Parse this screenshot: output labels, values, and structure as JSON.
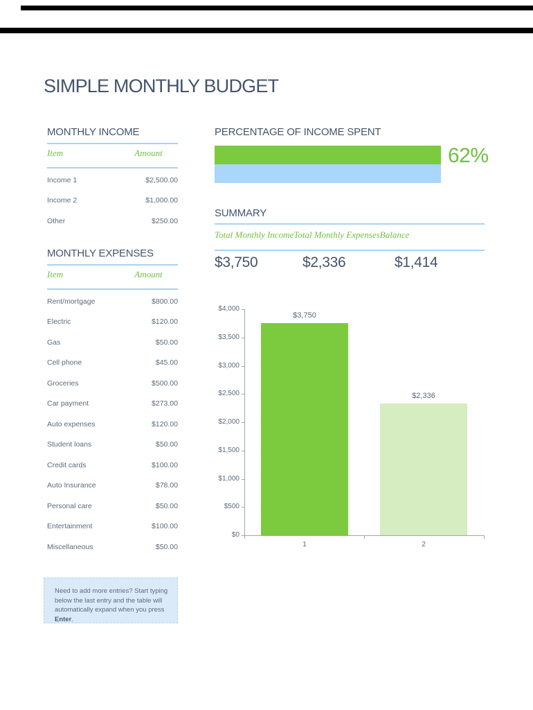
{
  "title": "SIMPLE MONTHLY BUDGET",
  "colors": {
    "heading": "#44546A",
    "body_text": "#5B6B7B",
    "accent_green": "#70BF41",
    "progress_green": "#7CCB3E",
    "progress_blue": "#A9D6FA",
    "rule_blue": "#A9D3F0",
    "chart_bar_1": "#7CCB3E",
    "chart_bar_2": "#D5EDC0",
    "note_background": "#DBEAF8"
  },
  "income": {
    "heading": "MONTHLY INCOME",
    "col_item": "Item",
    "col_amount": "Amount",
    "rows": [
      {
        "item": "Income 1",
        "amount": "$2,500.00"
      },
      {
        "item": "Income 2",
        "amount": "$1,000.00"
      },
      {
        "item": "Other",
        "amount": "$250.00"
      }
    ]
  },
  "expenses": {
    "heading": "MONTHLY EXPENSES",
    "col_item": "Item",
    "col_amount": "Amount",
    "rows": [
      {
        "item": "Rent/mortgage",
        "amount": "$800.00"
      },
      {
        "item": "Electric",
        "amount": "$120.00"
      },
      {
        "item": "Gas",
        "amount": "$50.00"
      },
      {
        "item": "Cell phone",
        "amount": "$45.00"
      },
      {
        "item": "Groceries",
        "amount": "$500.00"
      },
      {
        "item": "Car payment",
        "amount": "$273.00"
      },
      {
        "item": "Auto expenses",
        "amount": "$120.00"
      },
      {
        "item": "Student loans",
        "amount": "$50.00"
      },
      {
        "item": "Credit cards",
        "amount": "$100.00"
      },
      {
        "item": "Auto Insurance",
        "amount": "$78.00"
      },
      {
        "item": "Personal care",
        "amount": "$50.00"
      },
      {
        "item": "Entertainment",
        "amount": "$100.00"
      },
      {
        "item": "Miscellaneous",
        "amount": "$50.00"
      }
    ]
  },
  "percent_spent": {
    "heading": "PERCENTAGE OF INCOME SPENT",
    "label": "62%",
    "percent": 62
  },
  "summary": {
    "heading": "SUMMARY",
    "cols": [
      {
        "label": "Total Monthly Income",
        "value": "$3,750"
      },
      {
        "label": "Total Monthly Expenses",
        "value": "$2,336"
      },
      {
        "label": "Balance",
        "value": "$1,414"
      }
    ]
  },
  "chart_data": {
    "type": "bar",
    "title": "",
    "categories": [
      "1",
      "2"
    ],
    "values": [
      3750,
      2336
    ],
    "data_labels": [
      "$3,750",
      "$2,336"
    ],
    "series_colors": [
      "#7CCB3E",
      "#D5EDC0"
    ],
    "ylim": [
      0,
      4000
    ],
    "ytick_step": 500,
    "yticks": [
      "$4,000",
      "$3,500",
      "$3,000",
      "$2,500",
      "$2,000",
      "$1,500",
      "$1,000",
      "$500",
      "$0"
    ],
    "grid": false,
    "legend": false
  },
  "note": {
    "before": "Need to add more entries? Start typing below the last entry and the table will automatically expand when you press ",
    "bold": "Enter",
    "after": "."
  }
}
